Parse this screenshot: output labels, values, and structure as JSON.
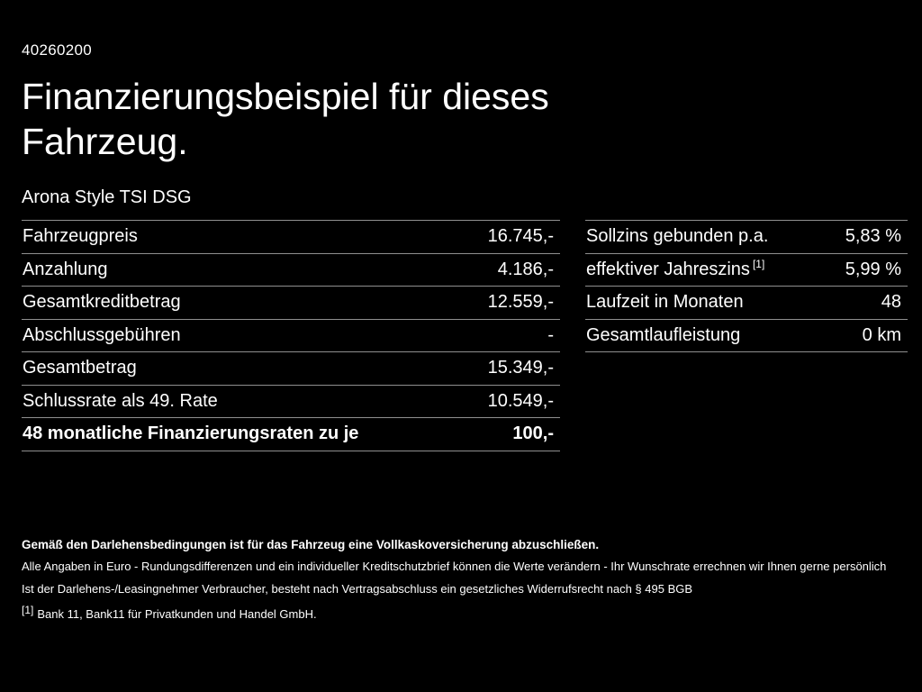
{
  "page": {
    "id_number": "40260200",
    "title": "Finanzierungsbeispiel für dieses Fahrzeug.",
    "subtitle": "Arona Style TSI DSG"
  },
  "left_table": {
    "rows": [
      {
        "label": "Fahrzeugpreis",
        "value": "16.745,-"
      },
      {
        "label": "Anzahlung",
        "value": "4.186,-"
      },
      {
        "label": "Gesamtkreditbetrag",
        "value": "12.559,-"
      },
      {
        "label": "Abschlussgebühren",
        "value": "-"
      },
      {
        "label": "Gesamtbetrag",
        "value": "15.349,-"
      },
      {
        "label": "Schlussrate als 49. Rate",
        "value": "10.549,-"
      },
      {
        "label": "48 monatliche Finanzierungsraten zu je",
        "value": "100,-",
        "bold": true
      }
    ]
  },
  "right_table": {
    "rows": [
      {
        "label": "Sollzins gebunden p.a.",
        "value": "5,83 %"
      },
      {
        "label": "effektiver Jahreszins",
        "sup": "[1]",
        "value": "5,99 %"
      },
      {
        "label": "Laufzeit in Monaten",
        "value": "48"
      },
      {
        "label": "Gesamtlaufleistung",
        "value": "0 km"
      }
    ]
  },
  "footer": {
    "line1": "Gemäß den Darlehensbedingungen ist für das Fahrzeug eine Vollkaskoversicherung abzuschließen.",
    "line2": "Alle Angaben in Euro - Rundungsdifferenzen und ein individueller Kreditschutzbrief können die Werte verändern - Ihr Wunschrate errechnen wir Ihnen gerne persönlich",
    "line3": "Ist der Darlehens-/Leasingnehmer Verbraucher, besteht nach Vertragsabschluss ein gesetzliches Widerrufsrecht nach § 495 BGB",
    "footnote_marker": "[1]",
    "footnote_text": "Bank 11, Bank11 für Privatkunden und Handel GmbH."
  },
  "colors": {
    "background": "#000000",
    "text": "#ffffff",
    "divider": "#8f8f8f"
  }
}
